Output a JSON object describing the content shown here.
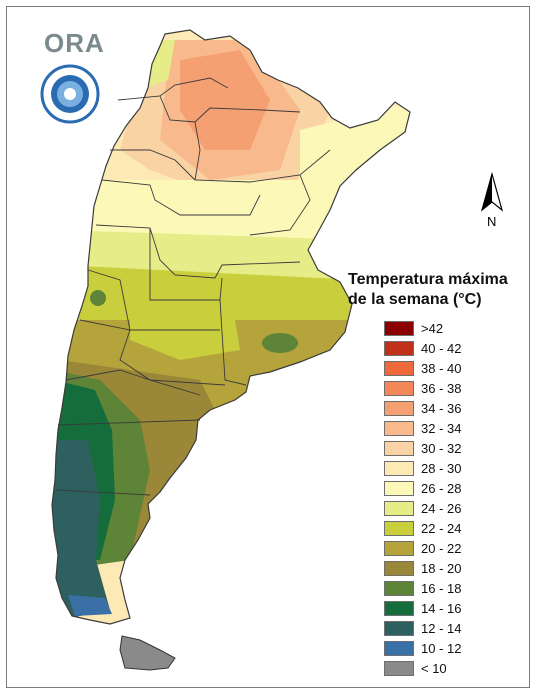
{
  "logo": {
    "text": "ORA"
  },
  "seal": {
    "icon": "government-seal-icon"
  },
  "north": {
    "label": "N",
    "icon": "north-arrow-icon"
  },
  "legend": {
    "title_line1": "Temperatura máxima",
    "title_line2": "de la semana (°C)",
    "items": [
      {
        "label": ">42",
        "color": "#8b0000"
      },
      {
        "label": "40 - 42",
        "color": "#c1301b"
      },
      {
        "label": "38 - 40",
        "color": "#ee6a3b"
      },
      {
        "label": "36 - 38",
        "color": "#f3875a"
      },
      {
        "label": "34 - 36",
        "color": "#f5a073"
      },
      {
        "label": "32 - 34",
        "color": "#f8b98d"
      },
      {
        "label": "30 - 32",
        "color": "#fad3a4"
      },
      {
        "label": "28 - 30",
        "color": "#fde9b5"
      },
      {
        "label": "26 - 28",
        "color": "#fcf8b8"
      },
      {
        "label": "24 - 26",
        "color": "#e6ec88"
      },
      {
        "label": "22 - 24",
        "color": "#c9cf3c"
      },
      {
        "label": "20 - 22",
        "color": "#b4a43b"
      },
      {
        "label": "18 - 20",
        "color": "#9a8737"
      },
      {
        "label": "16 - 18",
        "color": "#5e8438"
      },
      {
        "label": "14 - 16",
        "color": "#146d3a"
      },
      {
        "label": "12 - 14",
        "color": "#2f6060"
      },
      {
        "label": "10 - 12",
        "color": "#3b70a6"
      },
      {
        "label": "< 10",
        "color": "#8a8a8a"
      }
    ]
  }
}
